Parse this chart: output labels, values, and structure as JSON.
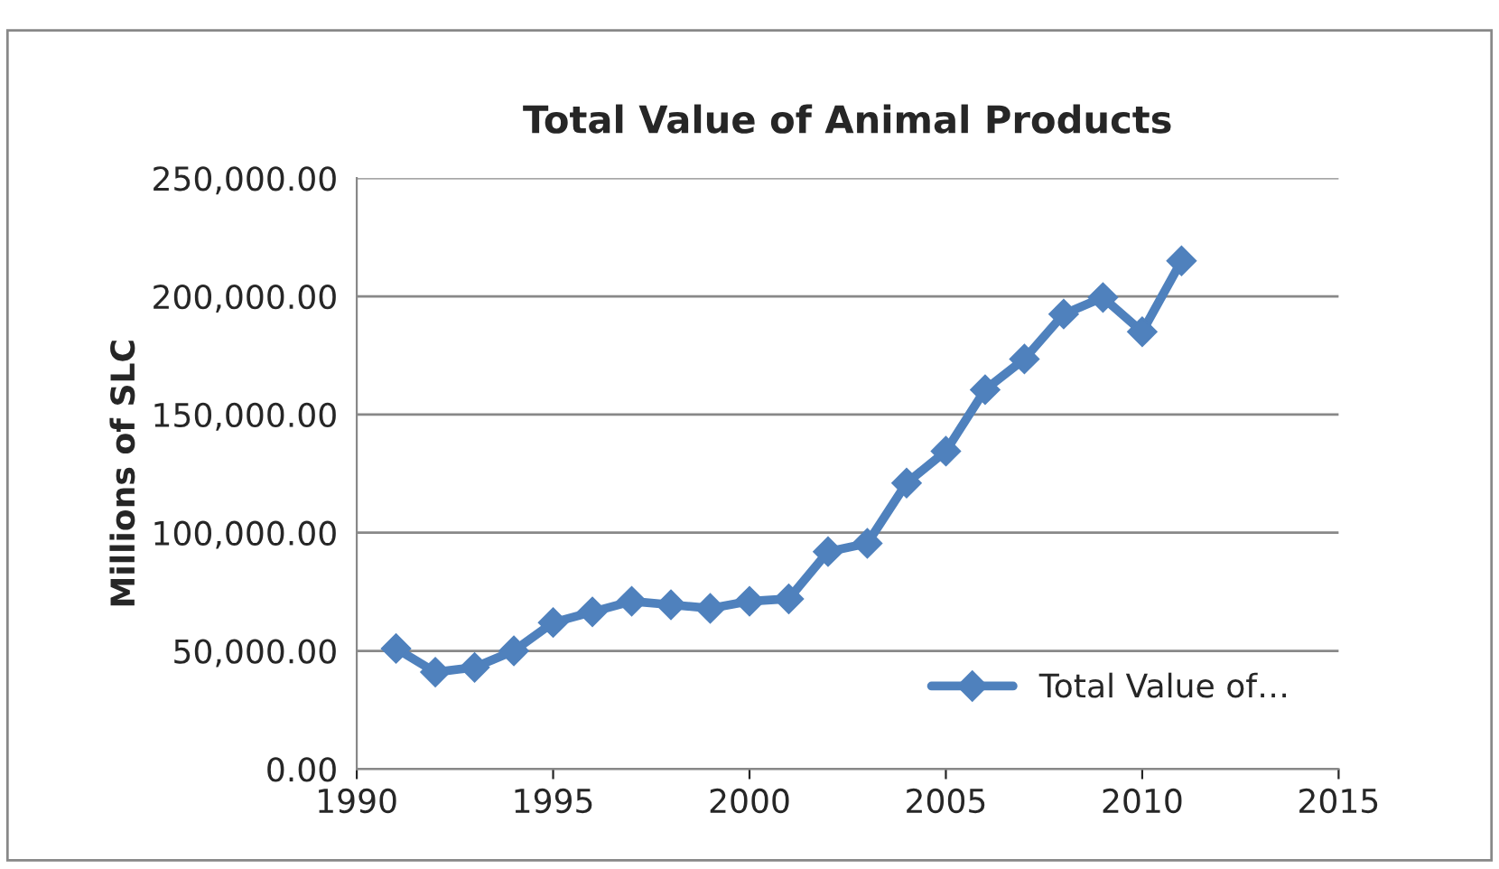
{
  "chart_data": {
    "type": "line",
    "title": "Total Value of Animal Products",
    "ylabel": "Millions of SLC",
    "x": [
      1991,
      1992,
      1993,
      1994,
      1995,
      1996,
      1997,
      1998,
      1999,
      2000,
      2001,
      2002,
      2003,
      2004,
      2005,
      2006,
      2007,
      2008,
      2009,
      2010,
      2011
    ],
    "series": [
      {
        "name": "Total Value of…",
        "color": "#4f81bd",
        "values": [
          51000,
          41000,
          43000,
          50000,
          62000,
          66500,
          71000,
          69500,
          68000,
          71000,
          72000,
          92000,
          95500,
          121000,
          134500,
          160500,
          173500,
          192500,
          199500,
          185000,
          215000
        ]
      }
    ],
    "xlim": [
      1990,
      2015
    ],
    "xticks": [
      1990,
      1995,
      2000,
      2005,
      2010,
      2015
    ],
    "ylim": [
      0,
      250000
    ],
    "yticks": [
      {
        "value": 0,
        "label": "0.00"
      },
      {
        "value": 50000,
        "label": "50,000.00"
      },
      {
        "value": 100000,
        "label": "100,000.00"
      },
      {
        "value": 150000,
        "label": "150,000.00"
      },
      {
        "value": 200000,
        "label": "200,000.00"
      },
      {
        "value": 250000,
        "label": "250,000.00"
      }
    ],
    "grid": "y",
    "legend": "bottom right",
    "marker": "diamond",
    "line_style": "solid"
  }
}
